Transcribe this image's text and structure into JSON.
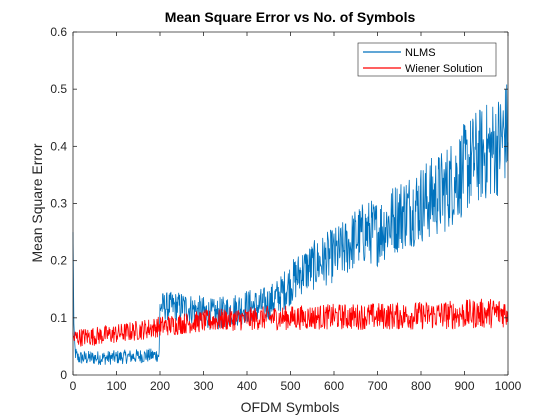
{
  "chart_data": {
    "type": "line",
    "title": "Mean Square Error vs No. of Symbols",
    "xlabel": "OFDM Symbols",
    "ylabel": "Mean Square Error",
    "xlim": [
      0,
      1000
    ],
    "ylim": [
      0,
      0.6
    ],
    "xticks": [
      0,
      100,
      200,
      300,
      400,
      500,
      600,
      700,
      800,
      900,
      1000
    ],
    "yticks": [
      0,
      0.1,
      0.2,
      0.3,
      0.4,
      0.5,
      0.6
    ],
    "xtick_labels": [
      "0",
      "100",
      "200",
      "300",
      "400",
      "500",
      "600",
      "700",
      "800",
      "900",
      "1000"
    ],
    "ytick_labels": [
      "0",
      "0.1",
      "0.2",
      "0.3",
      "0.4",
      "0.5",
      "0.6"
    ],
    "grid": false,
    "legend_position": "top-right",
    "series": [
      {
        "name": "NLMS",
        "color": "#0072BD",
        "x": [
          0,
          2,
          5,
          10,
          25,
          50,
          75,
          100,
          125,
          150,
          175,
          198,
          200,
          202,
          225,
          250,
          275,
          300,
          325,
          350,
          375,
          400,
          425,
          450,
          475,
          500,
          525,
          550,
          575,
          600,
          625,
          650,
          675,
          700,
          725,
          750,
          775,
          800,
          825,
          850,
          875,
          900,
          925,
          950,
          975,
          1000
        ],
        "y": [
          0.25,
          0.09,
          0.04,
          0.03,
          0.03,
          0.03,
          0.03,
          0.031,
          0.032,
          0.033,
          0.034,
          0.035,
          0.12,
          0.12,
          0.12,
          0.12,
          0.115,
          0.11,
          0.105,
          0.11,
          0.115,
          0.12,
          0.12,
          0.125,
          0.14,
          0.16,
          0.18,
          0.19,
          0.2,
          0.21,
          0.22,
          0.24,
          0.25,
          0.25,
          0.265,
          0.28,
          0.29,
          0.3,
          0.31,
          0.32,
          0.34,
          0.36,
          0.38,
          0.39,
          0.4,
          0.43
        ]
      },
      {
        "name": "Wiener Solution",
        "color": "#FF0000",
        "x": [
          0,
          50,
          100,
          150,
          200,
          250,
          300,
          350,
          400,
          450,
          500,
          550,
          600,
          650,
          700,
          750,
          800,
          850,
          900,
          950,
          1000
        ],
        "y": [
          0.065,
          0.068,
          0.072,
          0.078,
          0.085,
          0.09,
          0.094,
          0.097,
          0.098,
          0.1,
          0.1,
          0.101,
          0.102,
          0.102,
          0.103,
          0.103,
          0.104,
          0.105,
          0.106,
          0.108,
          0.11
        ]
      }
    ]
  }
}
